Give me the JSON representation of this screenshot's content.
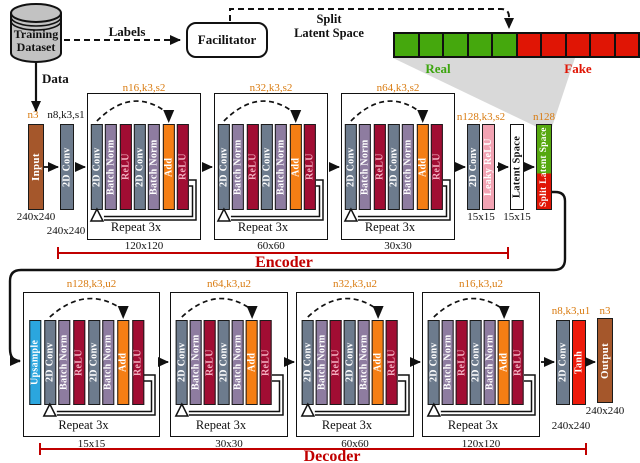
{
  "colors": {
    "conv_bar": "#6D7B8D",
    "batchnorm_bar": "#8E7CA0",
    "relu_bar": "#A10D33",
    "add_bar": "#F57E14",
    "upsample_bar": "#2BA6DE",
    "leaky_relu_bar": "#F2A3B3",
    "tanh_bar": "#EE1B0B",
    "input_output_bar": "#A5572B",
    "latent_bar": "#FFFFFF",
    "split_top_red": "#E01505",
    "split_bottom_green": "#56A80F",
    "real_green": "#45A80D",
    "fake_red": "#E01505",
    "accent_red": "#C00000",
    "param_orange": "#D97B10",
    "dataset_gray": "#C2C2C2",
    "funnel_gray": "#D9D9D9"
  },
  "top": {
    "dataset_line1": "Training",
    "dataset_line2": "Dataset",
    "labels_label": "Labels",
    "facilitator_label": "Facilitator",
    "data_label": "Data",
    "split_title_1": "Split",
    "split_title_2": "Latent Space",
    "real_label": "Real",
    "fake_label": "Fake",
    "squares": {
      "real_count": 5,
      "fake_count": 5
    }
  },
  "encoder": {
    "bracket_label": "Encoder",
    "input": {
      "param": "n3",
      "label": "Input",
      "size": "240x240"
    },
    "stem": {
      "param": "n8,k3,s1",
      "label": "2D Conv",
      "size": "240x240"
    },
    "blocks": [
      {
        "param": "n16,k3,s2",
        "repeat": "Repeat 3x",
        "size": "120x120",
        "bars": [
          {
            "label": "2D Conv",
            "type": "conv"
          },
          {
            "label": "Batch Norm",
            "type": "bn"
          },
          {
            "label": "ReLU",
            "type": "relu"
          },
          {
            "label": "2D Conv",
            "type": "conv"
          },
          {
            "label": "Batch Norm",
            "type": "bn"
          },
          {
            "label": "Add",
            "type": "add"
          },
          {
            "label": "ReLU",
            "type": "relu"
          }
        ]
      },
      {
        "param": "n32,k3,s2",
        "repeat": "Repeat 3x",
        "size": "60x60",
        "bars": [
          {
            "label": "2D Conv",
            "type": "conv"
          },
          {
            "label": "Batch Norm",
            "type": "bn"
          },
          {
            "label": "ReLU",
            "type": "relu"
          },
          {
            "label": "2D Conv",
            "type": "conv"
          },
          {
            "label": "Batch Norm",
            "type": "bn"
          },
          {
            "label": "Add",
            "type": "add"
          },
          {
            "label": "ReLU",
            "type": "relu"
          }
        ]
      },
      {
        "param": "n64,k3,s2",
        "repeat": "Repeat 3x",
        "size": "30x30",
        "bars": [
          {
            "label": "2D Conv",
            "type": "conv"
          },
          {
            "label": "Batch Norm",
            "type": "bn"
          },
          {
            "label": "ReLU",
            "type": "relu"
          },
          {
            "label": "2D Conv",
            "type": "conv"
          },
          {
            "label": "Batch Norm",
            "type": "bn"
          },
          {
            "label": "Add",
            "type": "add"
          },
          {
            "label": "ReLU",
            "type": "relu"
          }
        ]
      }
    ],
    "head": {
      "param": "n128,k3,s2",
      "conv_label": "2D Conv",
      "act_label": "Leaky ReLU",
      "size": "15x15"
    },
    "latent": {
      "label": "Latent Space",
      "size": "15x15"
    },
    "split": {
      "param": "n128",
      "label": "Split Latent Space"
    }
  },
  "decoder": {
    "bracket_label": "Decoder",
    "blocks": [
      {
        "param": "n128,k3,u2",
        "repeat": "Repeat 3x",
        "size": "15x15",
        "bars": [
          {
            "label": "Upsample",
            "type": "upsample"
          },
          {
            "label": "2D Conv",
            "type": "conv"
          },
          {
            "label": "Batch Norm",
            "type": "bn"
          },
          {
            "label": "ReLU",
            "type": "relu"
          },
          {
            "label": "2D Conv",
            "type": "conv"
          },
          {
            "label": "Batch Norm",
            "type": "bn"
          },
          {
            "label": "Add",
            "type": "add"
          },
          {
            "label": "ReLU",
            "type": "relu"
          }
        ]
      },
      {
        "param": "n64,k3,u2",
        "repeat": "Repeat 3x",
        "size": "30x30",
        "bars": [
          {
            "label": "2D Conv",
            "type": "conv"
          },
          {
            "label": "Batch Norm",
            "type": "bn"
          },
          {
            "label": "ReLU",
            "type": "relu"
          },
          {
            "label": "2D Conv",
            "type": "conv"
          },
          {
            "label": "Batch Norm",
            "type": "bn"
          },
          {
            "label": "Add",
            "type": "add"
          },
          {
            "label": "ReLU",
            "type": "relu"
          }
        ]
      },
      {
        "param": "n32,k3,u2",
        "repeat": "Repeat 3x",
        "size": "60x60",
        "bars": [
          {
            "label": "2D Conv",
            "type": "conv"
          },
          {
            "label": "Batch Norm",
            "type": "bn"
          },
          {
            "label": "ReLU",
            "type": "relu"
          },
          {
            "label": "2D Conv",
            "type": "conv"
          },
          {
            "label": "Batch Norm",
            "type": "bn"
          },
          {
            "label": "Add",
            "type": "add"
          },
          {
            "label": "ReLU",
            "type": "relu"
          }
        ]
      },
      {
        "param": "n16,k3,u2",
        "repeat": "Repeat 3x",
        "size": "120x120",
        "bars": [
          {
            "label": "2D Conv",
            "type": "conv"
          },
          {
            "label": "Batch Norm",
            "type": "bn"
          },
          {
            "label": "ReLU",
            "type": "relu"
          },
          {
            "label": "2D Conv",
            "type": "conv"
          },
          {
            "label": "Batch Norm",
            "type": "bn"
          },
          {
            "label": "Add",
            "type": "add"
          },
          {
            "label": "ReLU",
            "type": "relu"
          }
        ]
      }
    ],
    "head": {
      "param": "n8,k3,u1",
      "conv_label": "2D Conv",
      "act_label": "Tanh",
      "size": "240x240"
    },
    "output": {
      "param": "n3",
      "label": "Output",
      "size": "240x240"
    }
  }
}
